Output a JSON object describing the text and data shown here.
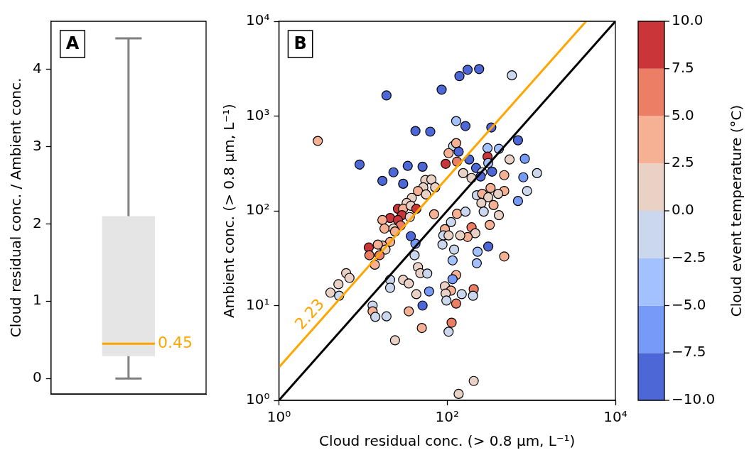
{
  "chart_data": [
    {
      "type": "box",
      "categories": [
        null
      ],
      "color": "#e5e5e5",
      "ylabel": "Cloud residual conc. / Ambient conc.",
      "ylim": [
        -0.2,
        4.62
      ],
      "yticks": [
        0,
        1,
        2,
        3,
        4
      ],
      "tick_labels": "y",
      "grid": false,
      "boxes": [
        {
          "low": 0,
          "q1": 0.29,
          "median": 0.45,
          "q3": 2.1,
          "high": 4.4
        }
      ],
      "annotations": [
        "A",
        "0.45"
      ]
    },
    {
      "type": "scatter",
      "xlabel": "Cloud residual conc. (> 0.8 µm, L⁻¹)",
      "ylabel": "Ambient conc. (> 0.8 µm, L⁻¹)",
      "clabel": "Cloud event temperature (°C)",
      "log": "xy",
      "grid": false,
      "xlim": [
        1,
        10000
      ],
      "ylim": [
        1,
        10000
      ],
      "xticks": [
        {
          "value": 1,
          "label": "10⁰"
        },
        {
          "value": 100,
          "label": "10²"
        },
        {
          "value": 10000,
          "label": "10⁴"
        }
      ],
      "yticks": [
        {
          "value": 1,
          "label": "10⁰"
        },
        {
          "value": 10,
          "label": "10¹"
        },
        {
          "value": 100,
          "label": "10²"
        },
        {
          "value": 1000,
          "label": "10³"
        },
        {
          "value": 10000,
          "label": "10⁴"
        }
      ],
      "clim": [
        -10,
        10
      ],
      "cticks": [
        {
          "value": -10,
          "label": "−10.0"
        },
        {
          "value": -7.5,
          "label": "−7.5"
        },
        {
          "value": -5,
          "label": "−5.0"
        },
        {
          "value": -2.5,
          "label": "−2.5"
        },
        {
          "value": 0,
          "label": "0.0"
        },
        {
          "value": 2.5,
          "label": "2.5"
        },
        {
          "value": 5,
          "label": "5.0"
        },
        {
          "value": 7.5,
          "label": "7.5"
        },
        {
          "value": 10,
          "label": "10.0"
        }
      ],
      "series": [
        {
          "type": "line",
          "color": "#000000",
          "x": [
            1,
            10000
          ],
          "values": [
            1,
            10000
          ]
        },
        {
          "type": "line",
          "color": "#ffa500",
          "x": [
            1,
            4484
          ],
          "values": [
            2.23,
            10000
          ]
        },
        {
          "type": "scatter",
          "marker": "circle",
          "x": [
            19,
            86,
            140,
            175,
            240,
            588,
            2.9,
            42,
            63,
            9.1,
            23,
            34,
            51,
            17,
            30,
            128,
            165,
            335,
            695,
            302,
            412,
            118,
            128,
            104,
            137,
            302,
            552,
            838,
            183,
            131,
            308,
            96,
            221,
            261,
            342,
            1170,
            250,
            155,
            195,
            477,
            804,
            891,
            328,
            477,
            225,
            261,
            695,
            308,
            255,
            356,
            404,
            272,
            412,
            70,
            131,
            165,
            111,
            321,
            94,
            195,
            216,
            175,
            143,
            90,
            104,
            88,
            308,
            230,
            121,
            116,
            225,
            477,
            42,
            41,
            45,
            48,
            58,
            94,
            128,
            116,
            207,
            111,
            203,
            149,
            96,
            98,
            128,
            61,
            43,
            51,
            21,
            21,
            30,
            35,
            35,
            50,
            13,
            13,
            14,
            19,
            24,
            113,
            104,
            207,
            137,
            4.1,
            5.2,
            5.1,
            6.3,
            6.9,
            55,
            65,
            72,
            52,
            45,
            56,
            38,
            33,
            26,
            30,
            37,
            43,
            29,
            36,
            21,
            17,
            26,
            28,
            18,
            23,
            24,
            37,
            21,
            17,
            15,
            18.5,
            11.7,
            11.9,
            15.7,
            13.8
          ],
          "values": [
            1650,
            1900,
            2640,
            3080,
            3130,
            2690,
            546,
            695,
            684,
            308,
            255,
            298,
            292,
            207,
            193,
            885,
            785,
            758,
            555,
            459,
            451,
            483,
            518,
            406,
            421,
            373,
            348,
            354,
            348,
            330,
            319,
            313,
            283,
            255,
            259,
            250,
            230,
            250,
            222,
            238,
            226,
            162,
            174,
            162,
            146,
            151,
            127,
            139,
            121,
            115,
            151,
            98,
            90,
            92,
            93,
            98,
            76,
            71,
            64,
            67,
            58,
            53,
            55,
            55,
            55,
            44,
            42,
            37,
            39,
            30,
            28,
            33,
            45,
            34,
            25.5,
            22,
            21.8,
            16,
            21,
            19,
            14.9,
            14.4,
            12.7,
            13.2,
            13.4,
            11.3,
            10.5,
            14.1,
            13.2,
            10,
            18.7,
            15.4,
            18.7,
            17.1,
            8.7,
            5.8,
            10,
            8.7,
            7.6,
            7.7,
            4.3,
            6.6,
            5.3,
            1.6,
            1.17,
            13.7,
            12.7,
            16.8,
            22,
            19.6,
            211,
            214,
            177,
            177,
            162,
            149,
            137,
            121,
            105,
            105,
            113,
            105,
            90,
            86,
            84,
            80,
            80,
            70,
            65,
            65,
            60.5,
            54,
            47,
            43,
            44,
            39,
            41,
            34,
            34,
            27
          ],
          "colors": [
            "#4e67d6",
            "#4e67d6",
            "#4e67d6",
            "#4e67d6",
            "#4e67d6",
            "#cbd7ec",
            "#f6b093",
            "#4e67d6",
            "#4e67d6",
            "#4e67d6",
            "#4e67d6",
            "#4e67d6",
            "#4e67d6",
            "#4e67d6",
            "#4e67d6",
            "#a2c1fe",
            "#4e67d6",
            "#4e67d6",
            "#4e67d6",
            "#a2c1fe",
            "#a2c1fe",
            "#cbd7ec",
            "#f6b093",
            "#f6b093",
            "#4e67d6",
            "#c93539",
            "#ead1c5",
            "#779af6",
            "#4e67d6",
            "#eb7e64",
            "#a2c1fe",
            "#c93539",
            "#4e67d6",
            "#cbd7ec",
            "#4e67d6",
            "#cbd7ec",
            "#4e67d6",
            "#ead1c5",
            "#ead1c5",
            "#f6b093",
            "#779af6",
            "#cbd7ec",
            "#f6b093",
            "#f6b093",
            "#cbd7ec",
            "#f6b093",
            "#779af6",
            "#ead1c5",
            "#ead1c5",
            "#f6b093",
            "#ead1c5",
            "#cbd7ec",
            "#ead1c5",
            "#f6b093",
            "#f6b093",
            "#cbd7ec",
            "#cbd7ec",
            "#f6b093",
            "#f6b093",
            "#eb7e64",
            "#ead1c5",
            "#f6b093",
            "#ead1c5",
            "#cbd7ec",
            "#ead1c5",
            "#cbd7ec",
            "#4e67d6",
            "#a2c1fe",
            "#cbd7ec",
            "#a2c1fe",
            "#a2c1fe",
            "#f6b093",
            "#779af6",
            "#cbd7ec",
            "#ead1c5",
            "#ead1c5",
            "#cbd7ec",
            "#ead1c5",
            "#f6b093",
            "#779af6",
            "#eb7e64",
            "#f6b093",
            "#cbd7ec",
            "#cbd7ec",
            "#ead1c5",
            "#cbd7ec",
            "#eb7e64",
            "#779af6",
            "#ead1c5",
            "#4e67d6",
            "#cbd7ec",
            "#cbd7ec",
            "#ead1c5",
            "#ead1c5",
            "#f6b093",
            "#f6b093",
            "#cbd7ec",
            "#f6b093",
            "#cbd7ec",
            "#cbd7ec",
            "#ead1c5",
            "#eb7e64",
            "#cbd7ec",
            "#ead1c5",
            "#ead1c5",
            "#ead1c5",
            "#cbd7ec",
            "#ead1c5",
            "#ead1c5",
            "#ead1c5",
            "#ead1c5",
            "#ead1c5",
            "#ead1c5",
            "#ead1c5",
            "#f6b093",
            "#ead1c5",
            "#ead1c5",
            "#ead1c5",
            "#c93539",
            "#f6b093",
            "#ead1c5",
            "#c93539",
            "#c93539",
            "#ead1c5",
            "#c93539",
            "#f6b093",
            "#c93539",
            "#eb7e64",
            "#f6b093",
            "#ead1c5",
            "#f6b093",
            "#4e67d6",
            "#f6b093",
            "#f6b093",
            "#f6b093",
            "#ead1c5",
            "#c93539",
            "#eb7e64",
            "#eb7e64",
            "#f6b093"
          ]
        }
      ],
      "annotations": [
        "B",
        "2.23"
      ]
    }
  ]
}
